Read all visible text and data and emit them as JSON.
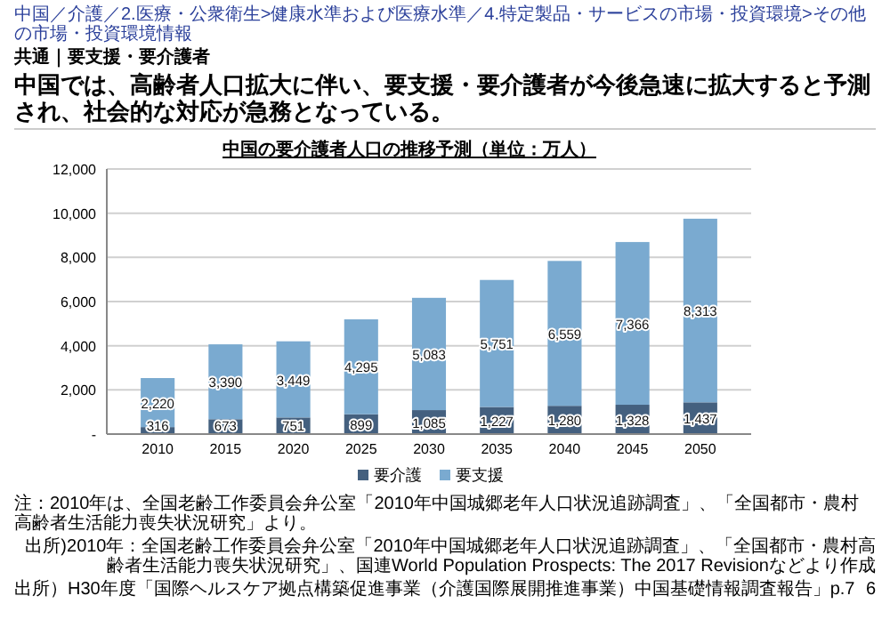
{
  "chart_data": {
    "type": "bar",
    "title": "中国の要介護者人口の推移予測（単位：万人）",
    "subtitle": "中国では、高齢者人口拡大に伴い、要支援・要介護者が今後急速に拡大すると予測され、社会的な対応が急務となっている。",
    "annotations": [
      "中国／介護／2.医療・公衆衛生>健康水準および医療水準／4.特定製品・サービスの市場・投資環境>その他の市場・投資環境情報",
      "共通｜要支援・要介護者",
      "注：2010年は、全国老齢工作委員会弁公室「2010年中国城郷老年人口状況追跡調査」、「全国都市・農村高齢者生活能力喪失状況研究」より。",
      "出所)2010年：全国老齢工作委員会弁公室「2010年中国城郷老年人口状況追跡調査」、「全国都市・農村高齢者生活能力喪失状況研究」、国連World Population Prospects: The 2017 Revisionなどより作成",
      "出所）H30年度「国際ヘルスケア拠点構築促進事業（介護国際展開推進事業）中国基礎情報調査報告」p.7",
      "6"
    ],
    "categories": [
      "2010",
      "2015",
      "2020",
      "2025",
      "2030",
      "2035",
      "2040",
      "2045",
      "2050"
    ],
    "series": [
      {
        "name": "要介護",
        "color": "#44607f",
        "values": [
          316,
          673,
          751,
          899,
          1085,
          1227,
          1280,
          1328,
          1437
        ],
        "value_labels": [
          "316",
          "673",
          "751",
          "899",
          "1,085",
          "1,227",
          "1,280",
          "1,328",
          "1,437"
        ]
      },
      {
        "name": "要支援",
        "color": "#7aaad0",
        "values": [
          2220,
          3390,
          3449,
          4295,
          5083,
          5751,
          6559,
          7366,
          8313
        ],
        "value_labels": [
          "2,220",
          "3,390",
          "3,449",
          "4,295",
          "5,083",
          "5,751",
          "6,559",
          "7,366",
          "8,313"
        ]
      }
    ],
    "stacked": true,
    "grid": "y",
    "legend": "bottom",
    "ylim": [
      0,
      12000
    ],
    "yticks": [
      {
        "value": 0,
        "label": "-"
      },
      {
        "value": 2000,
        "label": "2,000"
      },
      {
        "value": 4000,
        "label": "4,000"
      },
      {
        "value": 6000,
        "label": "6,000"
      },
      {
        "value": 8000,
        "label": "8,000"
      },
      {
        "value": 10000,
        "label": "10,000"
      },
      {
        "value": 12000,
        "label": "12,000"
      }
    ]
  }
}
